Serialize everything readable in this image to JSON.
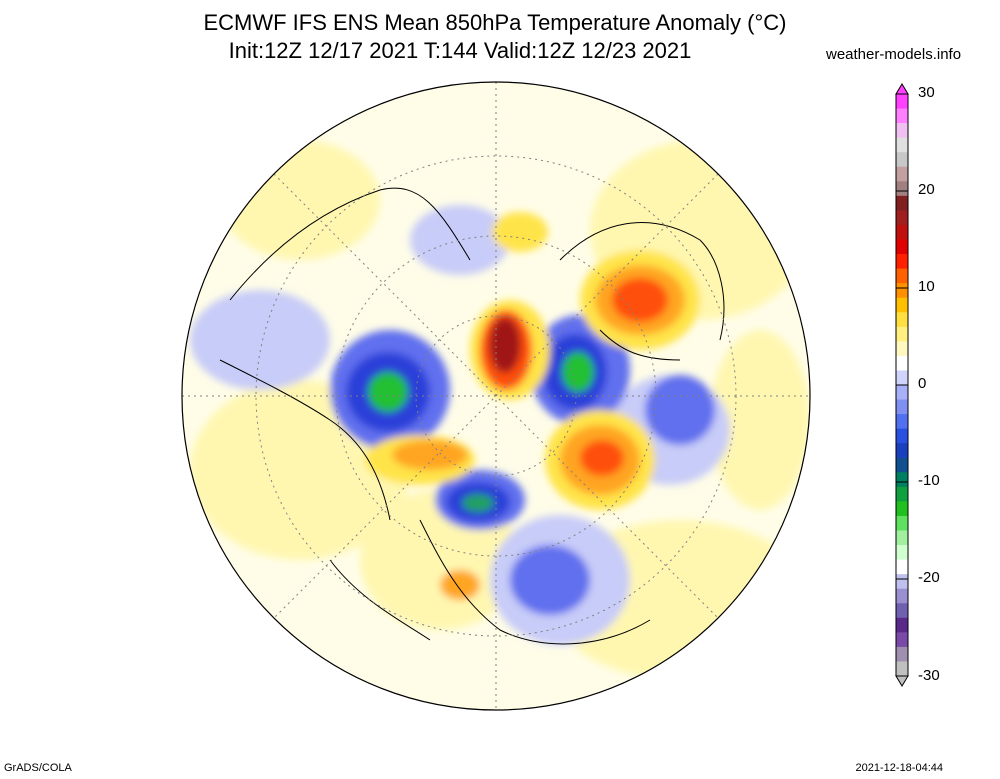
{
  "title": {
    "line1": "ECMWF IFS ENS Mean 850hPa Temperature Anomaly (°C)",
    "line2": "Init:12Z 12/17 2021  T:144 Valid:12Z 12/23 2021"
  },
  "credit": "weather-models.info",
  "footer": {
    "left": "GrADS/COLA",
    "right": "2021-12-18-04:44"
  },
  "colorbar": {
    "labels": [
      "30",
      "20",
      "10",
      "0",
      "-10",
      "-20",
      "-30"
    ],
    "range": [
      -30,
      30
    ],
    "colors": [
      "#c0c0c0",
      "#a090b0",
      "#7a4aa8",
      "#5a2a8a",
      "#7060b0",
      "#9a90d0",
      "#c0c0ee",
      "#ffffff",
      "#d0ffd0",
      "#a0f0a0",
      "#60e060",
      "#20c020",
      "#10a040",
      "#008060",
      "#105090",
      "#1a40c0",
      "#2a50e0",
      "#5070f0",
      "#8090f0",
      "#a8b0f8",
      "#d0d4fc",
      "#ffffff",
      "#fff8c0",
      "#fff080",
      "#ffe040",
      "#ffc000",
      "#ff9000",
      "#ff6000",
      "#ff2000",
      "#e00000",
      "#c01010",
      "#a02020",
      "#802020",
      "#a08080",
      "#c0a0a0",
      "#c8c8c8",
      "#e0e0e0",
      "#f0c0f0",
      "#ff80ff",
      "#ff40ff"
    ]
  },
  "map_colors": {
    "ocean_base": "#fffde8",
    "warm_light": "#fff7b0",
    "warm_mid": "#ffe44a",
    "warm_orange": "#ffa520",
    "warm_red": "#ff5010",
    "warm_dark": "#a01818",
    "cold_light": "#c8ccf8",
    "cold_mid": "#6070ee",
    "cold_blue": "#2a40d8",
    "cold_green": "#20c030",
    "coast": "#000000"
  }
}
